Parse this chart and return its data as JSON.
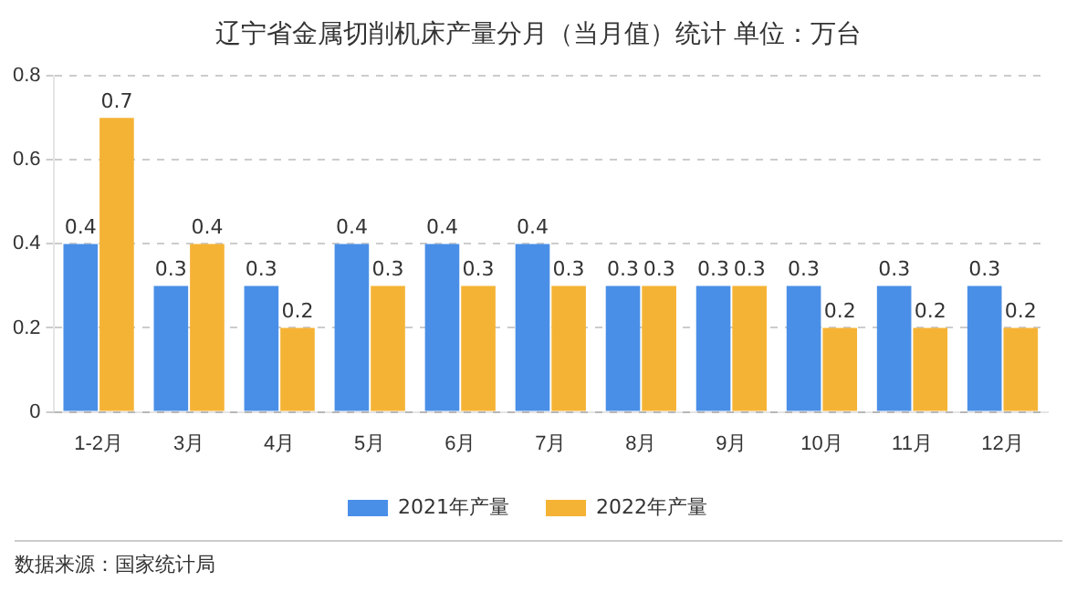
{
  "chart_data": {
    "type": "bar",
    "title": "辽宁省金属切削机床产量分月（当月值）统计 单位：万台",
    "categories": [
      "1-2月",
      "3月",
      "4月",
      "5月",
      "6月",
      "7月",
      "8月",
      "9月",
      "10月",
      "11月",
      "12月"
    ],
    "series": [
      {
        "name": "2021年产量",
        "color": "#4a8fe7",
        "values": [
          0.4,
          0.3,
          0.3,
          0.4,
          0.4,
          0.4,
          0.3,
          0.3,
          0.3,
          0.3,
          0.3
        ]
      },
      {
        "name": "2022年产量",
        "color": "#f5b335",
        "values": [
          0.7,
          0.4,
          0.2,
          0.3,
          0.3,
          0.3,
          0.3,
          0.3,
          0.2,
          0.2,
          0.2
        ]
      }
    ],
    "ylim": [
      0,
      0.8
    ],
    "yticks": [
      0,
      0.2,
      0.4,
      0.6,
      0.8
    ],
    "grid": "y",
    "legend": "bottom",
    "data_labels": true,
    "annotations": [
      "数据来源：国家统计局"
    ]
  }
}
